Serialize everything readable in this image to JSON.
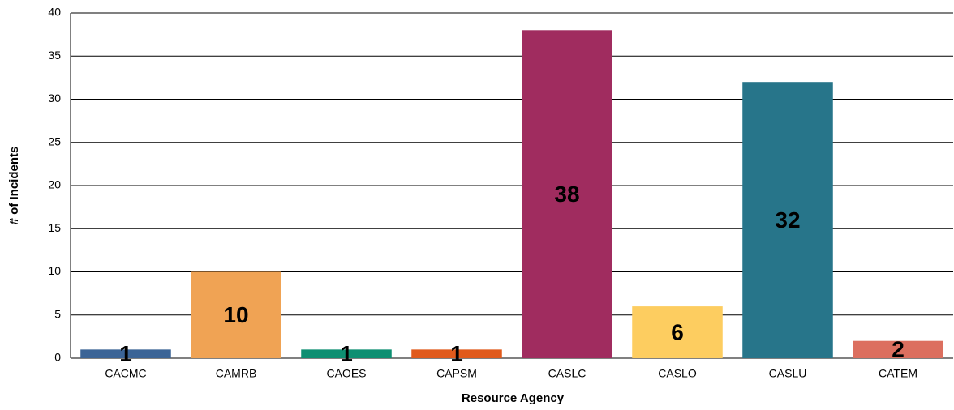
{
  "chart_data": {
    "type": "bar",
    "x_label": "Resource Agency",
    "y_label": "# of Incidents",
    "categories": [
      "CACMC",
      "CAMRB",
      "CAOES",
      "CAPSM",
      "CASLC",
      "CASLO",
      "CASLU",
      "CATEM"
    ],
    "values": [
      1,
      10,
      1,
      1,
      38,
      6,
      32,
      2
    ],
    "colors": [
      "#3b6496",
      "#f0a354",
      "#0e8f72",
      "#e05a1c",
      "#a02c5f",
      "#fdcd60",
      "#27758a",
      "#dc6f5f"
    ],
    "ylim": [
      0,
      40
    ],
    "yticks": [
      0,
      5,
      10,
      15,
      20,
      25,
      30,
      35,
      40
    ],
    "grid": true
  }
}
